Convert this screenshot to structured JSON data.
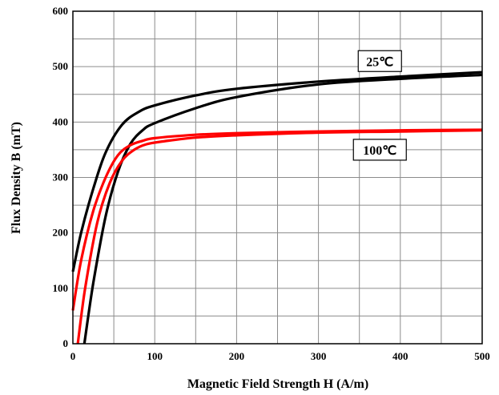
{
  "chart_data": {
    "type": "line",
    "title": "",
    "xlabel": "Magnetic Field Strength H (A/m)",
    "ylabel": "Flux Density B (mT)",
    "xlim": [
      0,
      500
    ],
    "ylim": [
      0,
      600
    ],
    "x_major_ticks": [
      0,
      100,
      200,
      300,
      400,
      500
    ],
    "y_major_ticks": [
      0,
      100,
      200,
      300,
      400,
      500,
      600
    ],
    "grid": true,
    "grid_step": {
      "x": 50,
      "y": 50
    },
    "legend": "none",
    "series": [
      {
        "color": "#000000",
        "x": [
          0,
          10,
          25,
          40,
          60,
          80,
          100,
          150,
          200,
          300,
          400,
          500
        ],
        "y": [
          130,
          200,
          280,
          345,
          395,
          418,
          430,
          448,
          460,
          473,
          482,
          490
        ]
      },
      {
        "color": "#000000",
        "x": [
          14,
          25,
          40,
          55,
          70,
          85,
          100,
          150,
          200,
          300,
          400,
          500
        ],
        "y": [
          0,
          110,
          230,
          310,
          360,
          385,
          398,
          425,
          445,
          468,
          478,
          485
        ]
      },
      {
        "color": "#ff0000",
        "x": [
          0,
          10,
          25,
          40,
          55,
          70,
          85,
          100,
          150,
          200,
          300,
          400,
          500
        ],
        "y": [
          60,
          150,
          240,
          300,
          340,
          358,
          366,
          371,
          377,
          380,
          383,
          385,
          386
        ]
      },
      {
        "color": "#ff0000",
        "x": [
          6,
          15,
          30,
          45,
          60,
          75,
          90,
          110,
          150,
          200,
          300,
          400,
          500
        ],
        "y": [
          0,
          100,
          220,
          290,
          330,
          350,
          360,
          365,
          372,
          376,
          381,
          383,
          385
        ]
      }
    ],
    "annotations": [
      {
        "text": "25℃",
        "x": 375,
        "y": 510
      },
      {
        "text": "100℃",
        "x": 375,
        "y": 350
      }
    ]
  }
}
